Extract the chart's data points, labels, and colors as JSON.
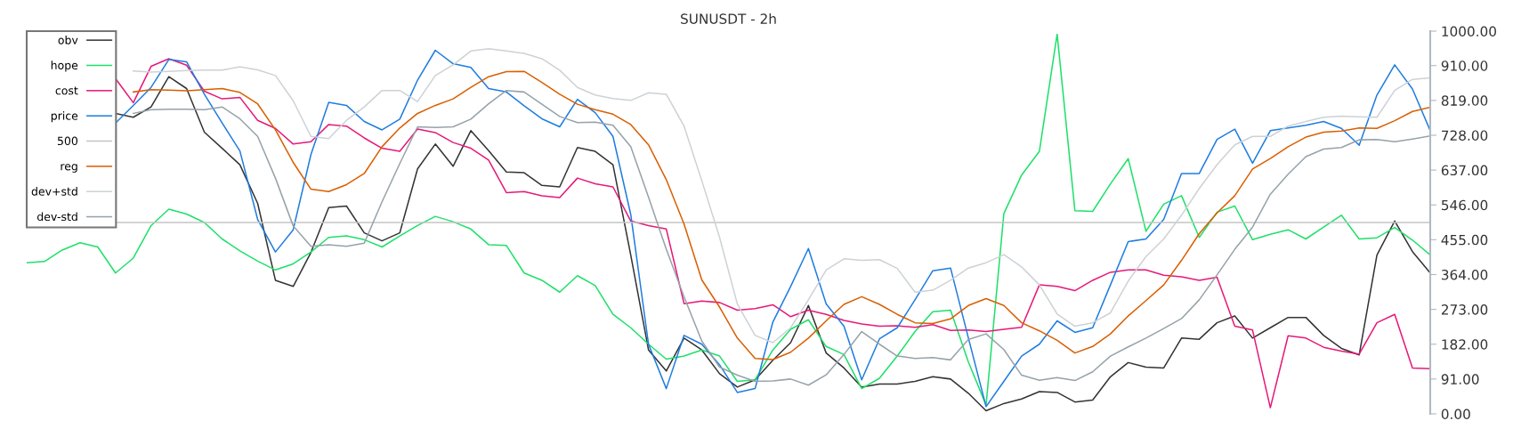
{
  "chart_data": {
    "type": "line",
    "title": "SUNUSDT - 2h",
    "categories": [
      null,
      null,
      null,
      null,
      null,
      null,
      null,
      null,
      null,
      null,
      null,
      null,
      null,
      null,
      null,
      null,
      null,
      null,
      null,
      null,
      null,
      null,
      null,
      null,
      null,
      null,
      null,
      null,
      null,
      null,
      null,
      null,
      null,
      null,
      null,
      null,
      null,
      null,
      null,
      null,
      null,
      null,
      null,
      null,
      null,
      null,
      null,
      null,
      null,
      null,
      null,
      null,
      null,
      null,
      null,
      null,
      null,
      null,
      null,
      null,
      null,
      null,
      null,
      null,
      null,
      null,
      null,
      null,
      null,
      null,
      null,
      null,
      null,
      null,
      null,
      null,
      null,
      null,
      null,
      null
    ],
    "series": [
      {
        "name": "obv",
        "color": "#333333",
        "values": [
          null,
          null,
          null,
          null,
          null,
          785,
          775,
          802,
          881,
          850,
          736,
          694,
          651,
          550,
          349,
          333,
          422,
          539,
          543,
          473,
          452,
          473,
          640,
          705,
          647,
          740,
          688,
          632,
          630,
          597,
          593,
          696,
          686,
          651,
          415,
          167,
          112,
          198,
          167,
          105,
          70,
          89,
          140,
          186,
          283,
          159,
          120,
          70,
          78,
          78,
          85,
          97,
          91,
          54,
          8,
          27,
          39,
          58,
          56,
          31,
          36,
          97,
          134,
          122,
          120,
          198,
          195,
          238,
          256,
          198,
          225,
          252,
          252,
          205,
          171,
          154,
          415,
          504,
          424,
          368
        ]
      },
      {
        "name": "hope",
        "color": "#1ee06a",
        "values": [
          395,
          398,
          428,
          447,
          436,
          368,
          407,
          492,
          535,
          522,
          500,
          457,
          426,
          399,
          376,
          392,
          423,
          461,
          465,
          455,
          436,
          465,
          492,
          516,
          502,
          483,
          442,
          440,
          368,
          349,
          318,
          361,
          335,
          260,
          225,
          182,
          143,
          151,
          167,
          151,
          85,
          89,
          167,
          221,
          246,
          176,
          155,
          66,
          93,
          151,
          215,
          267,
          271,
          136,
          23,
          523,
          624,
          686,
          992,
          531,
          529,
          601,
          667,
          477,
          548,
          570,
          461,
          527,
          543,
          455,
          469,
          481,
          457,
          488,
          519,
          457,
          460,
          487,
          454,
          415
        ]
      },
      {
        "name": "cost",
        "color": "#e6197a",
        "values": [
          null,
          null,
          null,
          null,
          null,
          876,
          813,
          908,
          928,
          911,
          843,
          823,
          827,
          767,
          746,
          705,
          711,
          756,
          752,
          721,
          694,
          686,
          744,
          735,
          709,
          694,
          663,
          578,
          581,
          570,
          565,
          616,
          601,
          593,
          504,
          492,
          483,
          288,
          295,
          291,
          271,
          275,
          285,
          254,
          271,
          260,
          244,
          235,
          229,
          230,
          226,
          233,
          218,
          219,
          215,
          221,
          226,
          337,
          333,
          322,
          349,
          370,
          376,
          376,
          362,
          358,
          349,
          357,
          229,
          219,
          16,
          204,
          198,
          174,
          164,
          156,
          238,
          260,
          120,
          118
        ]
      },
      {
        "name": "price",
        "color": "#1f7de0",
        "values": [
          null,
          null,
          null,
          null,
          null,
          760,
          806,
          853,
          926,
          920,
          835,
          760,
          687,
          508,
          423,
          481,
          678,
          814,
          806,
          764,
          742,
          770,
          872,
          950,
          915,
          905,
          850,
          841,
          805,
          771,
          750,
          822,
          787,
          725,
          521,
          182,
          66,
          205,
          182,
          128,
          56,
          66,
          240,
          333,
          432,
          287,
          229,
          89,
          196,
          225,
          298,
          374,
          381,
          199,
          19,
          85,
          151,
          182,
          243,
          213,
          225,
          337,
          450,
          457,
          508,
          628,
          628,
          717,
          744,
          655,
          740,
          747,
          754,
          764,
          746,
          702,
          833,
          912,
          849,
          740
        ]
      },
      {
        "name": "500",
        "color": "#c4c4c4",
        "values": [
          null,
          null,
          null,
          null,
          null,
          500,
          500,
          500,
          500,
          500,
          500,
          500,
          500,
          500,
          500,
          500,
          500,
          500,
          500,
          500,
          500,
          500,
          500,
          500,
          500,
          500,
          500,
          500,
          500,
          500,
          500,
          500,
          500,
          500,
          500,
          500,
          500,
          500,
          500,
          500,
          500,
          500,
          500,
          500,
          500,
          500,
          500,
          500,
          500,
          500,
          500,
          500,
          500,
          500,
          500,
          500,
          500,
          500,
          500,
          500,
          500,
          500,
          500,
          500,
          500,
          500,
          500,
          500,
          500,
          500,
          500,
          500,
          500,
          500,
          500,
          500,
          500,
          500,
          500,
          500
        ]
      },
      {
        "name": "reg",
        "color": "#d95f02",
        "values": [
          null,
          null,
          null,
          null,
          null,
          null,
          841,
          847,
          846,
          844,
          847,
          850,
          840,
          810,
          742,
          657,
          587,
          581,
          599,
          628,
          698,
          747,
          785,
          806,
          823,
          853,
          881,
          894,
          895,
          866,
          835,
          809,
          795,
          783,
          756,
          703,
          612,
          496,
          350,
          279,
          198,
          145,
          142,
          161,
          198,
          243,
          286,
          306,
          286,
          260,
          238,
          236,
          248,
          283,
          301,
          283,
          238,
          217,
          192,
          159,
          176,
          209,
          256,
          296,
          337,
          401,
          471,
          525,
          570,
          640,
          667,
          698,
          723,
          736,
          739,
          747,
          746,
          766,
          790,
          801
        ]
      },
      {
        "name": "dev+std",
        "color": "#cdd2d6",
        "values": [
          null,
          null,
          null,
          null,
          null,
          null,
          896,
          893,
          895,
          897,
          898,
          898,
          907,
          899,
          884,
          818,
          725,
          719,
          767,
          802,
          845,
          845,
          816,
          884,
          912,
          948,
          954,
          948,
          942,
          928,
          898,
          853,
          833,
          824,
          819,
          839,
          835,
          752,
          609,
          461,
          287,
          205,
          186,
          225,
          298,
          376,
          405,
          401,
          403,
          380,
          318,
          323,
          349,
          381,
          395,
          416,
          384,
          337,
          261,
          229,
          238,
          264,
          347,
          411,
          457,
          519,
          589,
          651,
          703,
          725,
          725,
          752,
          764,
          775,
          778,
          776,
          775,
          845,
          874,
          878
        ]
      },
      {
        "name": "dev-std",
        "color": "#96a2aa",
        "values": [
          null,
          null,
          null,
          null,
          null,
          null,
          785,
          795,
          796,
          796,
          795,
          802,
          771,
          725,
          616,
          491,
          438,
          442,
          438,
          446,
          554,
          654,
          750,
          748,
          750,
          770,
          810,
          845,
          841,
          809,
          777,
          761,
          762,
          754,
          698,
          566,
          430,
          306,
          190,
          122,
          101,
          85,
          86,
          91,
          75,
          102,
          155,
          215,
          182,
          151,
          145,
          147,
          141,
          194,
          209,
          168,
          101,
          88,
          95,
          87,
          110,
          151,
          175,
          198,
          223,
          249,
          298,
          363,
          430,
          488,
          574,
          626,
          672,
          692,
          696,
          716,
          717,
          711,
          718,
          726
        ]
      }
    ],
    "ylim": [
      0,
      1000
    ],
    "yticks": [
      {
        "value": 0,
        "label": "0.00"
      },
      {
        "value": 91,
        "label": "91.00"
      },
      {
        "value": 182,
        "label": "182.00"
      },
      {
        "value": 273,
        "label": "273.00"
      },
      {
        "value": 364,
        "label": "364.00"
      },
      {
        "value": 455,
        "label": "455.00"
      },
      {
        "value": 546,
        "label": "546.00"
      },
      {
        "value": 637,
        "label": "637.00"
      },
      {
        "value": 728,
        "label": "728.00"
      },
      {
        "value": 819,
        "label": "819.00"
      },
      {
        "value": 910,
        "label": "910.00"
      },
      {
        "value": 1000,
        "label": "1000.00"
      }
    ],
    "tick_labels": "y",
    "legend": "top left",
    "marker": "none",
    "line_style": "solid"
  }
}
